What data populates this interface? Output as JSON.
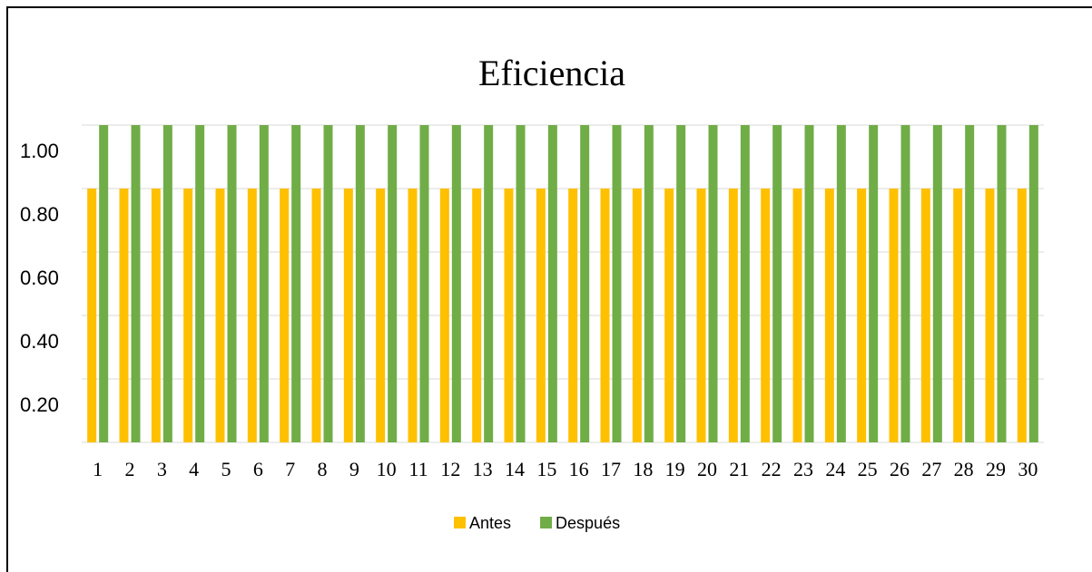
{
  "chart_data": {
    "type": "bar",
    "title": "Eficiencia",
    "categories": [
      "1",
      "2",
      "3",
      "4",
      "5",
      "6",
      "7",
      "8",
      "9",
      "10",
      "11",
      "12",
      "13",
      "14",
      "15",
      "16",
      "17",
      "18",
      "19",
      "20",
      "21",
      "22",
      "23",
      "24",
      "25",
      "26",
      "27",
      "28",
      "29",
      "30"
    ],
    "series": [
      {
        "name": "Antes",
        "color": "#FFC000",
        "values": [
          0.8,
          0.8,
          0.8,
          0.8,
          0.8,
          0.8,
          0.8,
          0.8,
          0.8,
          0.8,
          0.8,
          0.8,
          0.8,
          0.8,
          0.8,
          0.8,
          0.8,
          0.8,
          0.8,
          0.8,
          0.8,
          0.8,
          0.8,
          0.8,
          0.8,
          0.8,
          0.8,
          0.8,
          0.8,
          0.8
        ]
      },
      {
        "name": "Después",
        "color": "#70AD47",
        "values": [
          1,
          1,
          1,
          1,
          1,
          1,
          1,
          1,
          1,
          1,
          1,
          1,
          1,
          1,
          1,
          1,
          1,
          1,
          1,
          1,
          1,
          1,
          1,
          1,
          1,
          1,
          1,
          1,
          1,
          1
        ]
      }
    ],
    "ylim": [
      0,
      1
    ],
    "yticks": [
      {
        "value": 0.2,
        "label": "0.20"
      },
      {
        "value": 0.4,
        "label": "0.40"
      },
      {
        "value": 0.6,
        "label": "0.60"
      },
      {
        "value": 0.8,
        "label": "0.80"
      },
      {
        "value": 1,
        "label": "1.00"
      }
    ],
    "grid": true,
    "legend": "bottom"
  }
}
